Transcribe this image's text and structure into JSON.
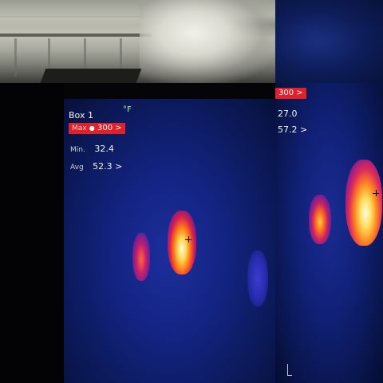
{
  "panel_left": {
    "box_label": "Box 1",
    "unit": "°F",
    "max": {
      "label": "Max",
      "value": "300 >"
    },
    "min": {
      "label": "Min.",
      "value": "32.4"
    },
    "avg": {
      "label": "Avg",
      "value": "52.3 >"
    }
  },
  "panel_right": {
    "max_value": "300 >",
    "min_value": "27.0",
    "avg_value": "57.2 >"
  },
  "colors": {
    "badge_red": "#e0202a",
    "unit_green": "#9cff7a",
    "thermal_blue": "#142484",
    "hot_yellow": "#ffd24a"
  }
}
